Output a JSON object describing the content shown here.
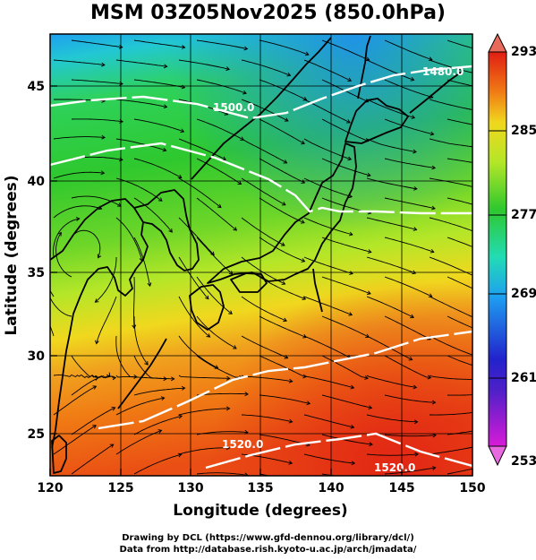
{
  "title": "MSM 03Z05Nov2025 (850.0hPa)",
  "x_axis": {
    "label": "Longitude (degrees)",
    "ticks": [
      "120",
      "125",
      "130",
      "135",
      "140",
      "145",
      "150"
    ]
  },
  "y_axis": {
    "label": "Latitude  (degrees)",
    "ticks": [
      "25",
      "30",
      "35",
      "40",
      "45"
    ]
  },
  "colorbar": {
    "ticks": [
      "293",
      "285",
      "277",
      "269",
      "261",
      "253"
    ]
  },
  "contour_labels": [
    "1480.0",
    "1500.0",
    "1520.0",
    "1520.0"
  ],
  "credits": {
    "line1": "Drawing by DCL (https://www.gfd-dennou.org/library/dcl/)",
    "line2": "Data from http://database.rish.kyoto-u.ac.jp/arch/jmadata/"
  },
  "chart_data": {
    "type": "heatmap",
    "variable_range": [
      253,
      293
    ],
    "xlim": [
      120,
      150
    ],
    "ylim": [
      22.5,
      47.5
    ],
    "colorbar_colors": [
      "#d81bd8",
      "#2222cc",
      "#1ea0f0",
      "#22dcb4",
      "#2ec82e",
      "#b4e628",
      "#f0d81e",
      "#f07a14",
      "#e01e14"
    ],
    "contour_values": [
      1480,
      1500,
      1520
    ],
    "features": [
      "streamlines",
      "coastlines",
      "lat-lon grid",
      "geopotential height contours"
    ]
  }
}
